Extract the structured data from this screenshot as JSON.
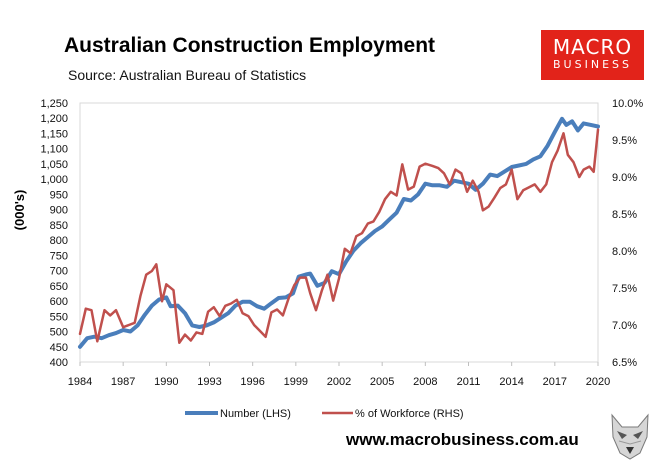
{
  "header": {
    "title": "Australian Construction Employment",
    "subtitle": "Source: Australian Bureau of Statistics"
  },
  "logo": {
    "line1": "MACRO",
    "line2": "BUSINESS",
    "bg_color": "#e2231a"
  },
  "footer": {
    "website": "www.macrobusiness.com.au",
    "logo_icon": "wolf-icon"
  },
  "chart_data": {
    "type": "line",
    "title": "Australian Construction Employment",
    "ylabel": "(000's)",
    "xlim": [
      1984,
      2020
    ],
    "ylim_left": [
      400,
      1250
    ],
    "ylim_right": [
      6.5,
      10.0
    ],
    "x_ticks": [
      1984,
      1987,
      1990,
      1993,
      1996,
      1999,
      2002,
      2005,
      2008,
      2011,
      2014,
      2017,
      2020
    ],
    "y_left_ticks": [
      "400",
      "450",
      "500",
      "550",
      "600",
      "650",
      "700",
      "750",
      "800",
      "850",
      "900",
      "950",
      "1,000",
      "1,050",
      "1,100",
      "1,150",
      "1,200",
      "1,250"
    ],
    "y_right_ticks": [
      "6.5%",
      "7.0%",
      "7.5%",
      "8.0%",
      "8.5%",
      "9.0%",
      "9.5%",
      "10.0%"
    ],
    "grid": false,
    "legend_position": "bottom",
    "series": [
      {
        "name": "Number (LHS)",
        "axis": "left",
        "color": "#4a7ebb",
        "points": [
          [
            1984.0,
            450
          ],
          [
            1984.5,
            478
          ],
          [
            1985.0,
            483
          ],
          [
            1985.5,
            478
          ],
          [
            1986.0,
            488
          ],
          [
            1986.5,
            495
          ],
          [
            1987.0,
            505
          ],
          [
            1987.5,
            500
          ],
          [
            1988.0,
            520
          ],
          [
            1988.5,
            555
          ],
          [
            1989.0,
            585
          ],
          [
            1989.5,
            605
          ],
          [
            1990.0,
            612
          ],
          [
            1990.3,
            583
          ],
          [
            1990.8,
            585
          ],
          [
            1991.3,
            560
          ],
          [
            1991.8,
            520
          ],
          [
            1992.3,
            515
          ],
          [
            1992.8,
            520
          ],
          [
            1993.3,
            530
          ],
          [
            1993.8,
            545
          ],
          [
            1994.3,
            560
          ],
          [
            1994.8,
            585
          ],
          [
            1995.3,
            598
          ],
          [
            1995.8,
            598
          ],
          [
            1996.3,
            583
          ],
          [
            1996.8,
            575
          ],
          [
            1997.3,
            593
          ],
          [
            1997.8,
            610
          ],
          [
            1998.3,
            612
          ],
          [
            1998.8,
            625
          ],
          [
            1999.2,
            680
          ],
          [
            1999.7,
            687
          ],
          [
            2000.0,
            690
          ],
          [
            2000.5,
            650
          ],
          [
            2001.0,
            660
          ],
          [
            2001.5,
            698
          ],
          [
            2002.0,
            688
          ],
          [
            2002.5,
            730
          ],
          [
            2003.0,
            765
          ],
          [
            2003.5,
            790
          ],
          [
            2004.0,
            810
          ],
          [
            2004.5,
            830
          ],
          [
            2005.0,
            845
          ],
          [
            2005.5,
            868
          ],
          [
            2006.0,
            890
          ],
          [
            2006.5,
            935
          ],
          [
            2007.0,
            930
          ],
          [
            2007.5,
            950
          ],
          [
            2008.0,
            985
          ],
          [
            2008.5,
            980
          ],
          [
            2009.0,
            980
          ],
          [
            2009.5,
            975
          ],
          [
            2010.0,
            995
          ],
          [
            2010.5,
            990
          ],
          [
            2011.0,
            985
          ],
          [
            2011.5,
            965
          ],
          [
            2012.0,
            985
          ],
          [
            2012.5,
            1015
          ],
          [
            2013.0,
            1010
          ],
          [
            2013.5,
            1025
          ],
          [
            2014.0,
            1040
          ],
          [
            2014.5,
            1045
          ],
          [
            2015.0,
            1050
          ],
          [
            2015.5,
            1065
          ],
          [
            2016.0,
            1075
          ],
          [
            2016.5,
            1110
          ],
          [
            2017.0,
            1155
          ],
          [
            2017.5,
            1198
          ],
          [
            2017.8,
            1178
          ],
          [
            2018.2,
            1190
          ],
          [
            2018.6,
            1160
          ],
          [
            2019.0,
            1183
          ],
          [
            2019.5,
            1178
          ],
          [
            2020.0,
            1173
          ]
        ]
      },
      {
        "name": "% of Workforce (RHS)",
        "axis": "right",
        "color": "#c0504d",
        "points": [
          [
            1984.0,
            6.88
          ],
          [
            1984.4,
            7.22
          ],
          [
            1984.8,
            7.2
          ],
          [
            1985.2,
            6.78
          ],
          [
            1985.7,
            7.2
          ],
          [
            1986.1,
            7.13
          ],
          [
            1986.5,
            7.2
          ],
          [
            1987.0,
            6.97
          ],
          [
            1987.4,
            7.0
          ],
          [
            1987.8,
            7.03
          ],
          [
            1988.2,
            7.39
          ],
          [
            1988.6,
            7.68
          ],
          [
            1989.0,
            7.73
          ],
          [
            1989.3,
            7.82
          ],
          [
            1989.7,
            7.32
          ],
          [
            1990.0,
            7.55
          ],
          [
            1990.5,
            7.47
          ],
          [
            1990.9,
            6.76
          ],
          [
            1991.3,
            6.87
          ],
          [
            1991.7,
            6.79
          ],
          [
            1992.1,
            6.9
          ],
          [
            1992.5,
            6.88
          ],
          [
            1992.9,
            7.18
          ],
          [
            1993.3,
            7.24
          ],
          [
            1993.7,
            7.12
          ],
          [
            1994.1,
            7.26
          ],
          [
            1994.5,
            7.29
          ],
          [
            1994.9,
            7.34
          ],
          [
            1995.3,
            7.16
          ],
          [
            1995.7,
            7.12
          ],
          [
            1996.1,
            7.0
          ],
          [
            1996.5,
            6.92
          ],
          [
            1996.9,
            6.84
          ],
          [
            1997.3,
            7.17
          ],
          [
            1997.7,
            7.21
          ],
          [
            1998.1,
            7.13
          ],
          [
            1998.5,
            7.36
          ],
          [
            1998.9,
            7.54
          ],
          [
            1999.3,
            7.64
          ],
          [
            1999.7,
            7.64
          ],
          [
            2000.0,
            7.43
          ],
          [
            2000.4,
            7.2
          ],
          [
            2000.8,
            7.46
          ],
          [
            2001.2,
            7.68
          ],
          [
            2001.6,
            7.33
          ],
          [
            2002.0,
            7.63
          ],
          [
            2002.4,
            8.03
          ],
          [
            2002.8,
            7.97
          ],
          [
            2003.2,
            8.2
          ],
          [
            2003.6,
            8.24
          ],
          [
            2004.0,
            8.37
          ],
          [
            2004.4,
            8.4
          ],
          [
            2004.8,
            8.53
          ],
          [
            2005.2,
            8.7
          ],
          [
            2005.6,
            8.8
          ],
          [
            2006.0,
            8.75
          ],
          [
            2006.4,
            9.17
          ],
          [
            2006.8,
            8.83
          ],
          [
            2007.2,
            8.87
          ],
          [
            2007.6,
            9.14
          ],
          [
            2008.0,
            9.18
          ],
          [
            2008.5,
            9.15
          ],
          [
            2008.9,
            9.12
          ],
          [
            2009.3,
            9.05
          ],
          [
            2009.7,
            8.9
          ],
          [
            2010.1,
            9.1
          ],
          [
            2010.5,
            9.05
          ],
          [
            2010.9,
            8.8
          ],
          [
            2011.3,
            8.95
          ],
          [
            2011.7,
            8.8
          ],
          [
            2012.0,
            8.55
          ],
          [
            2012.4,
            8.6
          ],
          [
            2012.8,
            8.72
          ],
          [
            2013.2,
            8.85
          ],
          [
            2013.6,
            8.9
          ],
          [
            2014.0,
            9.1
          ],
          [
            2014.4,
            8.7
          ],
          [
            2014.8,
            8.82
          ],
          [
            2015.2,
            8.86
          ],
          [
            2015.6,
            8.9
          ],
          [
            2016.0,
            8.8
          ],
          [
            2016.4,
            8.9
          ],
          [
            2016.8,
            9.2
          ],
          [
            2017.2,
            9.36
          ],
          [
            2017.6,
            9.59
          ],
          [
            2017.9,
            9.3
          ],
          [
            2018.3,
            9.2
          ],
          [
            2018.7,
            9.0
          ],
          [
            2019.0,
            9.1
          ],
          [
            2019.4,
            9.14
          ],
          [
            2019.7,
            9.07
          ],
          [
            2020.0,
            9.64
          ]
        ]
      }
    ]
  }
}
